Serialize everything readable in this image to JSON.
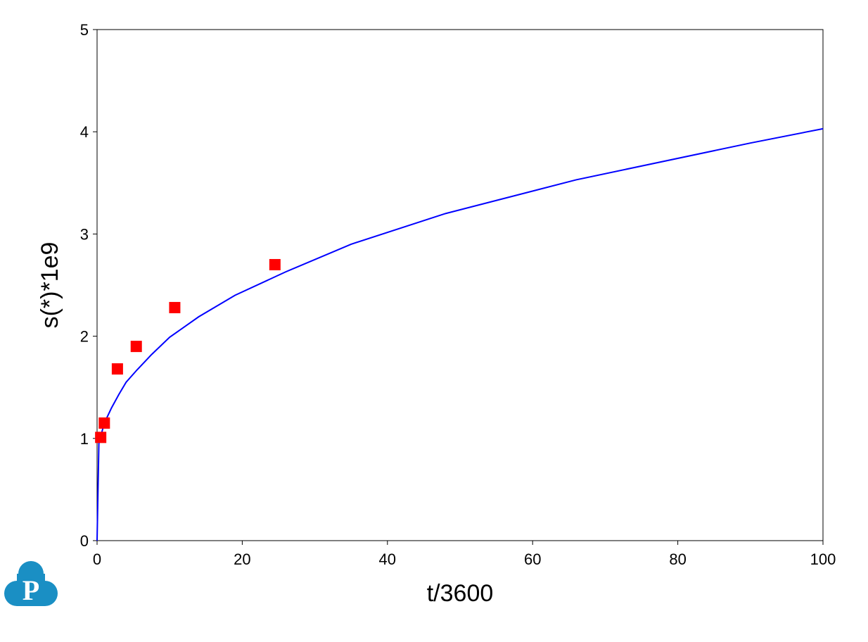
{
  "logo_text": "P",
  "chart_data": {
    "type": "line",
    "title": null,
    "x_label": "t/3600",
    "y_label": "s(*)*1e9",
    "xlim": [
      0,
      100
    ],
    "ylim": [
      0,
      5
    ],
    "xticks": [
      0,
      20,
      40,
      60,
      80,
      100
    ],
    "yticks": [
      0,
      1,
      2,
      3,
      4,
      5
    ],
    "grid": false,
    "series": [
      {
        "type": "line",
        "color": "#0000ff",
        "x": [
          0,
          0.25,
          0.5,
          1,
          2,
          3,
          4,
          5.5,
          7.5,
          10,
          14,
          19,
          26,
          35,
          48,
          66,
          90,
          100
        ],
        "values": [
          0,
          0.95,
          1.02,
          1.15,
          1.3,
          1.43,
          1.55,
          1.67,
          1.82,
          1.99,
          2.19,
          2.4,
          2.63,
          2.9,
          3.2,
          3.53,
          3.89,
          4.03
        ]
      },
      {
        "type": "scatter",
        "color": "#ff0000",
        "x": [
          0.5,
          1,
          2.8,
          5.4,
          10.7,
          24.5
        ],
        "values": [
          1.01,
          1.15,
          1.68,
          1.9,
          2.28,
          2.7
        ]
      }
    ]
  }
}
